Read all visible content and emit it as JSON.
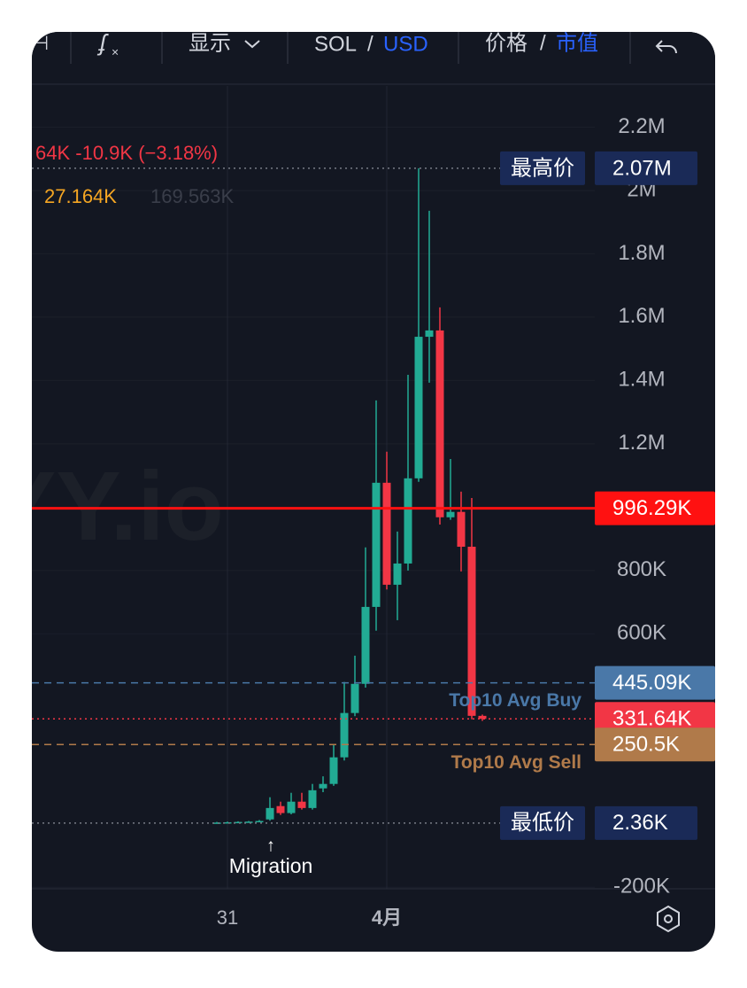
{
  "toolbar": {
    "display": "显示",
    "base": "SOL",
    "sep1": "/",
    "quote": "USD",
    "price": "价格",
    "sep2": "/",
    "mcap": "市值"
  },
  "chart_data": {
    "type": "candlestick",
    "legend_text": {
      "change": "64K  -10.9K (−3.18%)",
      "volume": "27.164K",
      "volume_ma": "169.563K"
    },
    "watermark": "YY.io",
    "annotation": {
      "arrow": "↑",
      "text": "Migration"
    },
    "categories": [
      null,
      "31",
      null,
      null,
      null,
      null,
      null,
      null,
      null,
      null,
      null,
      null,
      null,
      null,
      null,
      null,
      "4月",
      null,
      null,
      null,
      null,
      null,
      null,
      null,
      null,
      null
    ],
    "open": [
      3000,
      4000,
      5000,
      6000,
      7000,
      14000,
      56000,
      34000,
      70000,
      50000,
      112000,
      126000,
      210000,
      350000,
      442000,
      685000,
      1077000,
      755000,
      822000,
      1091000,
      1538000,
      1558000,
      968000,
      985000,
      875000,
      341000
    ],
    "high": [
      6000,
      7000,
      8000,
      9000,
      12000,
      84000,
      70000,
      98000,
      98000,
      126000,
      150000,
      252000,
      448000,
      531000,
      873000,
      1337000,
      1175000,
      923000,
      1418000,
      2070000,
      1936000,
      1631000,
      1152000,
      1049000,
      1029000,
      345000
    ],
    "low": [
      2360,
      3000,
      4000,
      5000,
      6000,
      10000,
      28000,
      30000,
      45000,
      45000,
      100000,
      120000,
      200000,
      340000,
      430000,
      610000,
      740000,
      643000,
      800000,
      1080000,
      1393000,
      945000,
      960000,
      797000,
      330000,
      325000
    ],
    "close": [
      4000,
      5000,
      6000,
      7000,
      9000,
      50000,
      34000,
      70000,
      50000,
      106000,
      126000,
      210000,
      350000,
      442000,
      685000,
      1077000,
      755000,
      822000,
      1091000,
      1538000,
      1558000,
      968000,
      985000,
      875000,
      341000,
      331640
    ],
    "up_color": "#22ab94",
    "down_color": "#f23645",
    "ylim": [
      -205000,
      2330000
    ],
    "yticks": [
      {
        "value": 2200000,
        "label": "2.2M"
      },
      {
        "value": 2000000,
        "label": "2M"
      },
      {
        "value": 1800000,
        "label": "1.8M"
      },
      {
        "value": 1600000,
        "label": "1.6M"
      },
      {
        "value": 1400000,
        "label": "1.4M"
      },
      {
        "value": 1200000,
        "label": "1.2M"
      },
      {
        "value": 800000,
        "label": "800K"
      },
      {
        "value": 600000,
        "label": "600K"
      },
      {
        "value": -200000,
        "label": "-200K"
      }
    ],
    "grid": true,
    "price_lines": [
      {
        "label": "最高价",
        "value": 2070000,
        "value_label": "2.07M",
        "color": "#787b86",
        "box_color": "#1a2a57",
        "style": "dotted",
        "label_style": "box"
      },
      {
        "value": 996290,
        "value_label": "996.29K",
        "color": "#ff1111",
        "box_color": "#ff1111",
        "style": "solid"
      },
      {
        "label": "Top10 Avg Buy",
        "value": 445090,
        "value_label": "445.09K",
        "color": "#4a78a8",
        "box_color": "#4a78a8",
        "style": "dashed",
        "label_style": "text"
      },
      {
        "value": 331640,
        "value_label": "331.64K",
        "color": "#f23645",
        "box_color": "#f23645",
        "style": "dotted"
      },
      {
        "label": "Top10 Avg Sell",
        "value": 250500,
        "value_label": "250.5K",
        "color": "#b07a4a",
        "box_color": "#b07a4a",
        "style": "dashed",
        "label_style": "text"
      },
      {
        "label": "最低价",
        "value": 2360,
        "value_label": "2.36K",
        "color": "#787b86",
        "box_color": "#1a2a57",
        "style": "dotted",
        "label_style": "box"
      }
    ]
  }
}
